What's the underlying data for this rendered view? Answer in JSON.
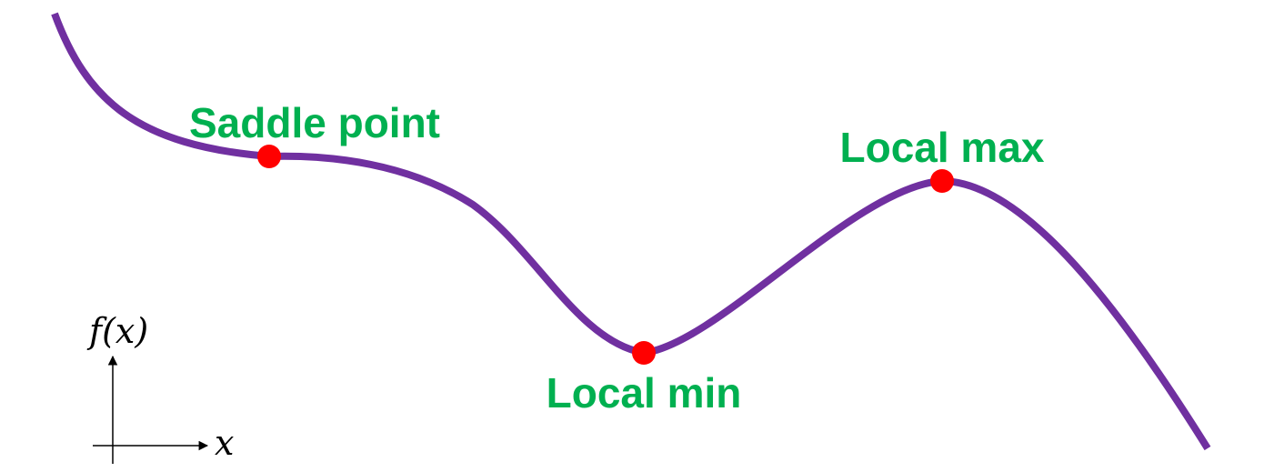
{
  "diagram": {
    "colors": {
      "curve": "#7030a0",
      "point": "#ff0000",
      "label": "#00b050",
      "axis": "#000000"
    },
    "points": [
      {
        "id": "saddle",
        "label": "Saddle point"
      },
      {
        "id": "local-min",
        "label": "Local min"
      },
      {
        "id": "local-max",
        "label": "Local max"
      }
    ],
    "axes": {
      "y_label": "f(x)",
      "x_label": "x"
    }
  }
}
